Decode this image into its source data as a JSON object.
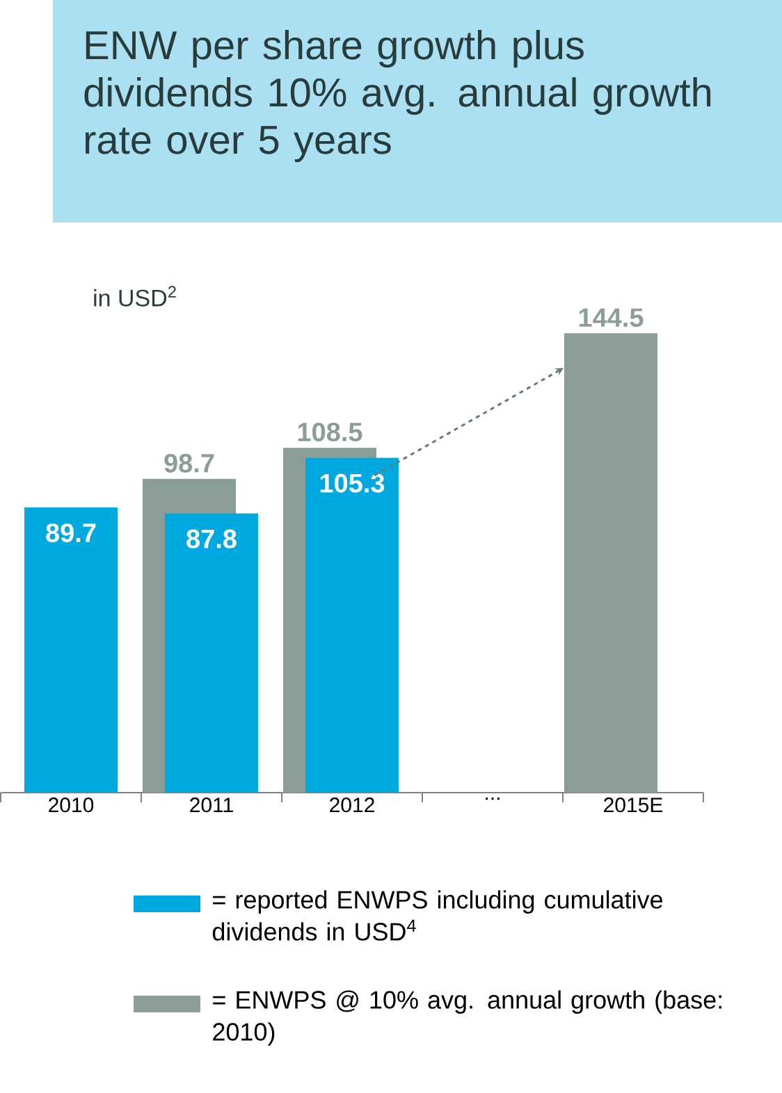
{
  "chart_data": {
    "type": "bar",
    "title": "ENW per share growth plus dividends 10% avg. annual growth rate over 5 years",
    "annotations": [
      "in USD$^{2}$"
    ],
    "categories": [
      "2010",
      "2011",
      "2012",
      "...",
      "2015E"
    ],
    "series": [
      {
        "name": "= ENWPS @ 10% avg. annual growth (base: 2010)",
        "color": "#8a9d96",
        "values": [
          null,
          98.7,
          108.5,
          null,
          144.5
        ]
      },
      {
        "name": "= reported ENWPS including cumulative dividends in USD$^{4}$",
        "color": "#00a8e0",
        "values": [
          89.7,
          87.8,
          105.3,
          null,
          null
        ]
      }
    ],
    "data_labels": true,
    "legend": "bottom"
  }
}
